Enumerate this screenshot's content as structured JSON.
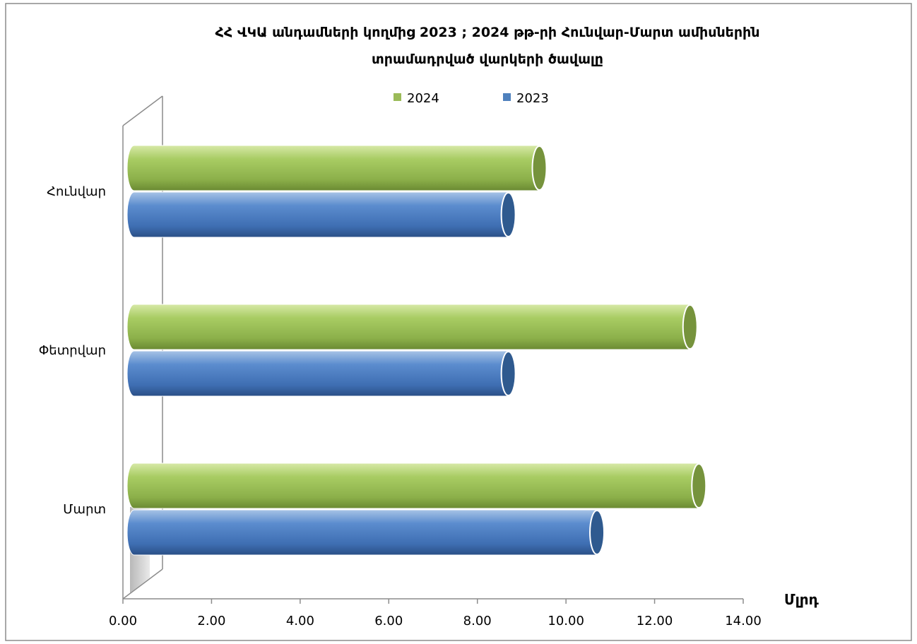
{
  "chart_data": {
    "type": "bar",
    "orientation": "horizontal",
    "title_lines": [
      "ՀՀ ՎԿԱ անդամների կողմից 2023 ; 2024 թթ-րի Հունվար-Մարտ ամիսներին",
      "տրամադրված վարկերի ծավալը"
    ],
    "categories": [
      "Հունվար",
      "Փետրվար",
      "Մարտ"
    ],
    "series": [
      {
        "name": "2024",
        "color": "#9BBB59",
        "values": [
          9.4,
          12.8,
          13.0
        ]
      },
      {
        "name": "2023",
        "color": "#4F81BD",
        "values": [
          8.7,
          8.7,
          10.7
        ]
      }
    ],
    "x_ticks": [
      "0.00",
      "2.00",
      "4.00",
      "6.00",
      "8.00",
      "10.00",
      "12.00",
      "14.00"
    ],
    "xlim": [
      0,
      14
    ],
    "unit_label": "Մլրդ",
    "legend_position": "top",
    "grid": false
  }
}
